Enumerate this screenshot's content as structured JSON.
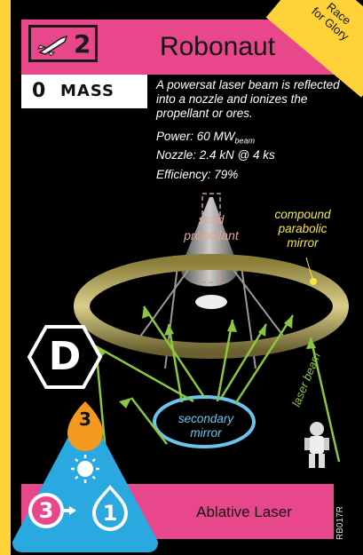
{
  "card": {
    "thrust": "2",
    "title": "Robonaut",
    "corner_label_line1": "Race",
    "corner_label_line2": "for Glory",
    "mass_value": "0",
    "mass_label": "MASS",
    "description": "A powersat laser beam is reflected into a nozzle and ionizes the propellant or ores.",
    "power": "Power: 60 MW",
    "power_sub": "beam",
    "nozzle": "Nozzle: 2.4 kN @ 4 ks",
    "efficiency": "Efficiency: 79%",
    "spectral_type": "D",
    "fuel_cost": "3",
    "promotion_from": "3",
    "promotion_to": "1",
    "side_name": "Ablative Laser",
    "card_code": "RB017R"
  },
  "art_labels": {
    "solid_line1": "solid",
    "solid_line2": "propellant",
    "mirror_line1": "compound",
    "mirror_line2": "parabolic",
    "mirror_line3": "mirror",
    "secondary_line1": "secondary",
    "secondary_line2": "mirror",
    "laser": "laser beam"
  },
  "colors": {
    "pink": "#e8478c",
    "yellow": "#ffd23a",
    "blue": "#29a9e0",
    "orange": "#f39a1e",
    "green": "#8cc63e"
  },
  "icons": {
    "thrust": "rocket-icon",
    "sun": "sun-icon",
    "astronaut": "astronaut-icon"
  }
}
